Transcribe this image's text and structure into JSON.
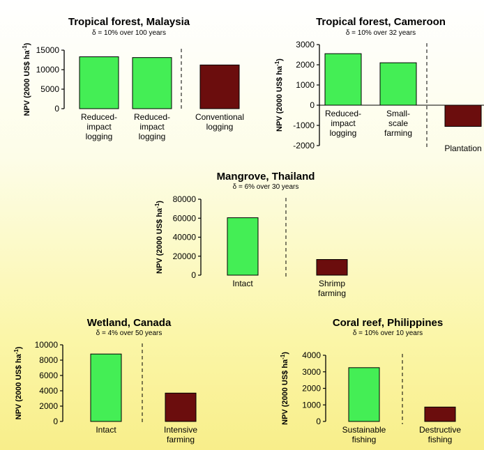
{
  "chart_data": [
    {
      "type": "bar",
      "title": "Tropical forest, Malaysia",
      "subtitle": "δ = 10% over 100 years",
      "ylabel": "NPV (2000 US$ ha",
      "ylabel_sup": "-1",
      "ylabel_end": ")",
      "ylim": [
        0,
        15000
      ],
      "yticks": [
        0,
        5000,
        10000,
        15000
      ],
      "categories": [
        "Reduced-\nimpact\nlogging",
        "Reduced-\nimpact\nlogging",
        "Conventional\nlogging"
      ],
      "values": [
        13300,
        13100,
        11200
      ],
      "colors": [
        "#44ee55",
        "#44ee55",
        "#6b0d0d"
      ],
      "divider_after": 1
    },
    {
      "type": "bar",
      "title": "Tropical forest, Cameroon",
      "subtitle": "δ = 10% over 32 years",
      "ylabel": "NPV (2000 US$ ha",
      "ylabel_sup": "-1",
      "ylabel_end": ")",
      "ylim": [
        -2000,
        3000
      ],
      "yticks": [
        -2000,
        -1000,
        0,
        1000,
        2000,
        3000
      ],
      "categories": [
        "Reduced-\nimpact\nlogging",
        "Small-\nscale\nfarming",
        "Plantation"
      ],
      "values": [
        2550,
        2100,
        -1050
      ],
      "colors": [
        "#44ee55",
        "#44ee55",
        "#6b0d0d"
      ],
      "divider_after": 1
    },
    {
      "type": "bar",
      "title": "Mangrove, Thailand",
      "subtitle": "δ = 6% over 30 years",
      "ylabel": "NPV (2000 US$ ha",
      "ylabel_sup": "-1",
      "ylabel_end": ")",
      "ylim": [
        0,
        80000
      ],
      "yticks": [
        0,
        20000,
        40000,
        60000,
        80000
      ],
      "categories": [
        "Intact",
        "Shrimp\nfarming"
      ],
      "values": [
        60500,
        16500
      ],
      "colors": [
        "#44ee55",
        "#6b0d0d"
      ],
      "divider_after": 0
    },
    {
      "type": "bar",
      "title": "Wetland, Canada",
      "subtitle": "δ = 4% over 50 years",
      "ylabel": "NPV (2000 US$ ha",
      "ylabel_sup": "-1",
      "ylabel_end": ")",
      "ylim": [
        0,
        10000
      ],
      "yticks": [
        0,
        2000,
        4000,
        6000,
        8000,
        10000
      ],
      "categories": [
        "Intact",
        "Intensive\nfarming"
      ],
      "values": [
        8800,
        3700
      ],
      "colors": [
        "#44ee55",
        "#6b0d0d"
      ],
      "divider_after": 0
    },
    {
      "type": "bar",
      "title": "Coral reef, Philippines",
      "subtitle": "δ = 10% over 10 years",
      "ylabel": "NPV (2000 US$ ha",
      "ylabel_sup": "-1",
      "ylabel_end": ")",
      "ylim": [
        0,
        4000
      ],
      "yticks": [
        0,
        1000,
        2000,
        3000,
        4000
      ],
      "categories": [
        "Sustainable\nfishing",
        "Destructive\nfishing"
      ],
      "values": [
        3250,
        870
      ],
      "colors": [
        "#44ee55",
        "#6b0d0d"
      ],
      "divider_after": 0
    }
  ]
}
